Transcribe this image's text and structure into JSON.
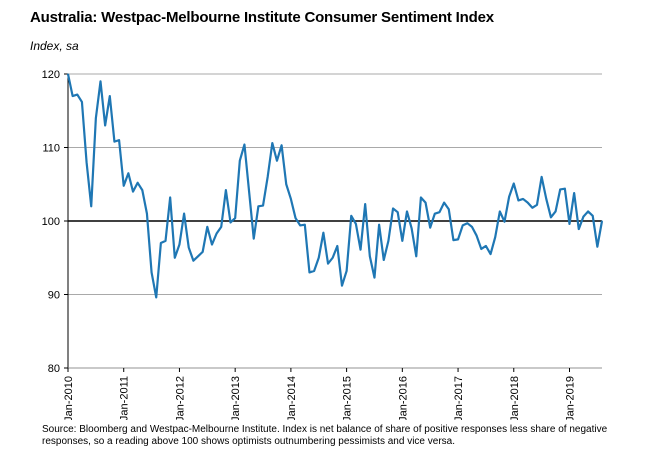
{
  "chart_data": {
    "type": "line",
    "title": "Australia: Westpac-Melbourne Institute Consumer Sentiment Index",
    "ylabel": "Index, sa",
    "xlabel": "",
    "ylim": [
      80,
      120
    ],
    "yticks": [
      80,
      90,
      100,
      110,
      120
    ],
    "reference_line": 100,
    "grid": "horizontal",
    "x_tick_labels": [
      "Jan-2010",
      "Jan-2011",
      "Jan-2012",
      "Jan-2013",
      "Jan-2014",
      "Jan-2015",
      "Jan-2016",
      "Jan-2017",
      "Jan-2018",
      "Jan-2019"
    ],
    "series": [
      {
        "name": "Consumer Sentiment Index",
        "color": "#1f77b4",
        "start": "Jan-2010",
        "frequency": "monthly",
        "values": [
          120.0,
          117.0,
          117.2,
          116.2,
          108.0,
          102.0,
          114.0,
          119.0,
          113.0,
          117.0,
          110.8,
          111.0,
          104.8,
          106.5,
          104.0,
          105.2,
          104.2,
          101.0,
          93.0,
          89.6,
          97.0,
          97.3,
          103.2,
          95.0,
          96.8,
          101.0,
          96.4,
          94.6,
          95.2,
          95.8,
          99.2,
          96.8,
          98.3,
          99.2,
          104.2,
          99.8,
          100.4,
          108.2,
          110.4,
          104.0,
          97.6,
          102.0,
          102.1,
          106.0,
          110.6,
          108.2,
          110.3,
          105.0,
          103.0,
          100.4,
          99.4,
          99.5,
          93.0,
          93.2,
          95.0,
          98.4,
          94.2,
          95.0,
          96.6,
          91.2,
          93.2,
          100.7,
          99.6,
          96.1,
          102.3,
          95.2,
          92.3,
          99.5,
          94.7,
          97.3,
          101.7,
          101.2,
          97.3,
          101.3,
          99.0,
          95.2,
          103.2,
          102.5,
          99.1,
          101.0,
          101.2,
          102.5,
          101.6,
          97.4,
          97.5,
          99.4,
          99.7,
          99.2,
          98.0,
          96.2,
          96.6,
          95.5,
          97.8,
          101.3,
          99.9,
          103.3,
          105.1,
          102.8,
          103.0,
          102.5,
          101.8,
          102.2,
          106.0,
          103.0,
          100.5,
          101.3,
          104.3,
          104.4,
          99.6,
          103.8,
          98.9,
          100.6,
          101.3,
          100.7,
          96.5,
          100.0
        ]
      }
    ]
  },
  "source_text": "Source: Bloomberg and Westpac-Melbourne Institute.  Index is net balance of share of positive responses less share of negative responses, so a reading above 100 shows optimists outnumbering pessimists and vice versa."
}
